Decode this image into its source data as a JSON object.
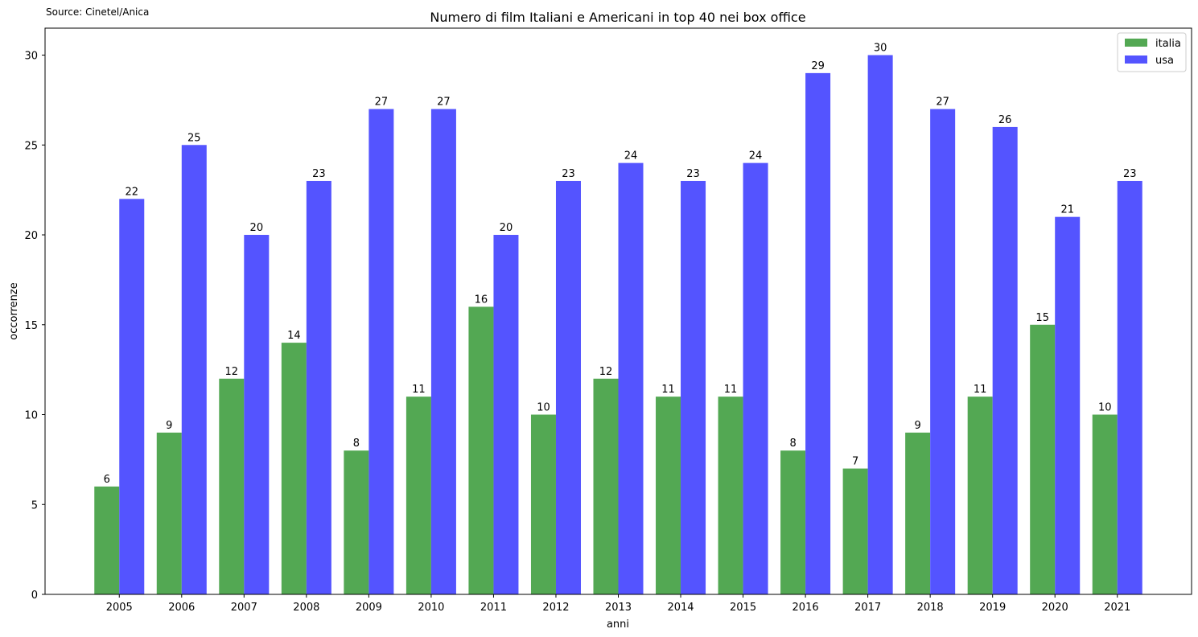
{
  "source_note": "Source: Cinetel/Anica",
  "chart_data": {
    "type": "bar",
    "title": "Numero di film Italiani e Americani in top 40 nei box office",
    "xlabel": "anni",
    "ylabel": "occorrenze",
    "categories": [
      "2005",
      "2006",
      "2007",
      "2008",
      "2009",
      "2010",
      "2011",
      "2012",
      "2013",
      "2014",
      "2015",
      "2016",
      "2017",
      "2018",
      "2019",
      "2020",
      "2021"
    ],
    "series": [
      {
        "name": "italia",
        "color": "#53a853",
        "values": [
          6,
          9,
          12,
          14,
          8,
          11,
          16,
          10,
          12,
          11,
          11,
          8,
          7,
          9,
          11,
          15,
          10
        ]
      },
      {
        "name": "usa",
        "color": "#5454ff",
        "values": [
          22,
          25,
          20,
          23,
          27,
          27,
          20,
          23,
          24,
          23,
          24,
          29,
          30,
          27,
          26,
          21,
          23
        ]
      }
    ],
    "ylim": [
      0,
      31.5
    ],
    "yticks": [
      0,
      5,
      10,
      15,
      20,
      25,
      30
    ],
    "grid": false,
    "legend_position": "top-right",
    "data_labels": true
  }
}
